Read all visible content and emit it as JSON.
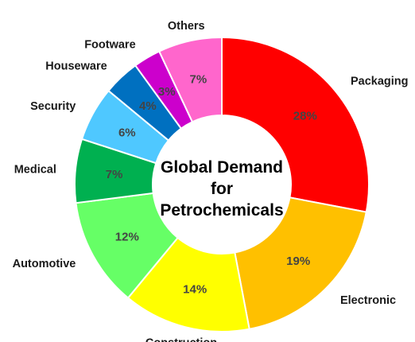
{
  "chart_data": {
    "type": "pie",
    "variant": "donut",
    "title_lines": [
      "Global Demand",
      "for",
      "Petrochemicals"
    ],
    "unit": "%",
    "slices": [
      {
        "label": "Packaging",
        "value": 28,
        "value_label": "28%",
        "color": "#ff0000"
      },
      {
        "label": "Electronic",
        "value": 19,
        "value_label": "19%",
        "color": "#ffc000"
      },
      {
        "label": "Construction",
        "value": 14,
        "value_label": "14%",
        "color": "#ffff00"
      },
      {
        "label": "Automotive",
        "value": 12,
        "value_label": "12%",
        "color": "#66ff66"
      },
      {
        "label": "Medical",
        "value": 7,
        "value_label": "7%",
        "color": "#00b050"
      },
      {
        "label": "Security",
        "value": 6,
        "value_label": "6%",
        "color": "#4fc8ff"
      },
      {
        "label": "Houseware",
        "value": 4,
        "value_label": "4%",
        "color": "#0070c0"
      },
      {
        "label": "Footware",
        "value": 3,
        "value_label": "3%",
        "color": "#cc00cc"
      },
      {
        "label": "Others",
        "value": 7,
        "value_label": "7%",
        "color": "#ff66cc"
      }
    ]
  }
}
